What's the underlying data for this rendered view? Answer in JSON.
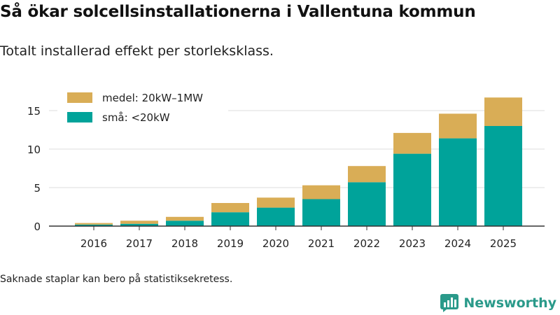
{
  "header": {
    "title": "Så ökar solcellsinstallationerna i Vallentuna kommun",
    "subtitle": "Totalt installerad effekt per storleksklass."
  },
  "footer": {
    "note": "Saknade staplar kan bero på statistiksekretess.",
    "brand": "Newsworthy"
  },
  "colors": {
    "small": "#00a39a",
    "medium": "#d9ad56",
    "grid": "#dddddd",
    "axis": "#333333",
    "brand": "#2a9a8a"
  },
  "chart_data": {
    "type": "bar",
    "stacked": true,
    "title": "Så ökar solcellsinstallationerna i Vallentuna kommun",
    "subtitle": "Totalt installerad effekt per storleksklass.",
    "xlabel": "",
    "ylabel": "",
    "ylim": [
      0,
      18
    ],
    "yticks": [
      0,
      5,
      10,
      15
    ],
    "grid": true,
    "legend_position": "top-left",
    "categories": [
      "2016",
      "2017",
      "2018",
      "2019",
      "2020",
      "2021",
      "2022",
      "2023",
      "2024",
      "2025"
    ],
    "series": [
      {
        "name": "små: <20kW",
        "color": "#00a39a",
        "values": [
          0.2,
          0.3,
          0.7,
          1.8,
          2.4,
          3.5,
          5.7,
          9.4,
          11.4,
          13.0
        ]
      },
      {
        "name": "medel: 20kW–1MW",
        "color": "#d9ad56",
        "values": [
          0.2,
          0.4,
          0.5,
          1.2,
          1.3,
          1.8,
          2.1,
          2.7,
          3.2,
          3.7
        ]
      }
    ],
    "legend": [
      "medel: 20kW–1MW",
      "små: <20kW"
    ]
  }
}
